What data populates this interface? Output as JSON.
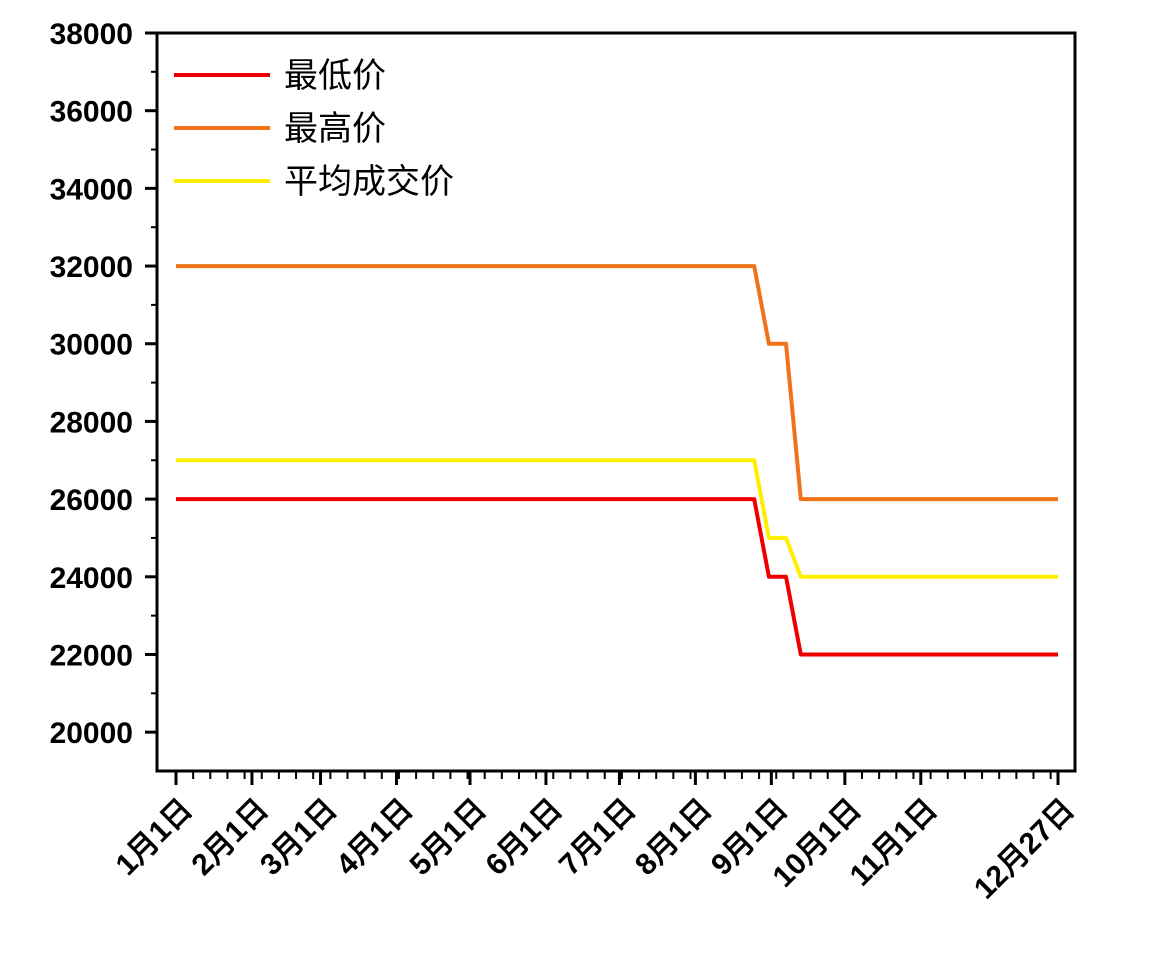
{
  "chart_data": {
    "type": "line",
    "x_tick_labels": [
      "1月1日",
      "2月1日",
      "3月1日",
      "4月1日",
      "5月1日",
      "6月1日",
      "7月1日",
      "8月1日",
      "9月1日",
      "10月1日",
      "11月1日",
      "12月27日"
    ],
    "x_tick_dates": [
      "01-01",
      "02-01",
      "03-01",
      "04-01",
      "05-01",
      "06-01",
      "07-01",
      "08-01",
      "09-01",
      "10-01",
      "11-01",
      "12-27"
    ],
    "xlim": [
      "01-01",
      "12-27"
    ],
    "ylim": [
      19000,
      38000
    ],
    "y_ticks": [
      20000,
      22000,
      24000,
      26000,
      28000,
      30000,
      32000,
      34000,
      36000,
      38000
    ],
    "grid": false,
    "legend_position": "top-left",
    "series": [
      {
        "name": "最低价",
        "color": "#ee0000",
        "points": [
          [
            "01-01",
            26000
          ],
          [
            "08-25",
            26000
          ],
          [
            "08-31",
            24000
          ],
          [
            "09-07",
            24000
          ],
          [
            "09-13",
            22000
          ],
          [
            "12-27",
            22000
          ]
        ]
      },
      {
        "name": "最高价",
        "color": "#f07318",
        "points": [
          [
            "01-01",
            32000
          ],
          [
            "08-25",
            32000
          ],
          [
            "08-31",
            30000
          ],
          [
            "09-07",
            30000
          ],
          [
            "09-13",
            26000
          ],
          [
            "12-27",
            26000
          ]
        ]
      },
      {
        "name": "平均成交价",
        "color": "#ffee00",
        "points": [
          [
            "01-01",
            27000
          ],
          [
            "08-25",
            27000
          ],
          [
            "08-31",
            25000
          ],
          [
            "09-07",
            25000
          ],
          [
            "09-13",
            24000
          ],
          [
            "12-27",
            24000
          ]
        ]
      }
    ]
  }
}
